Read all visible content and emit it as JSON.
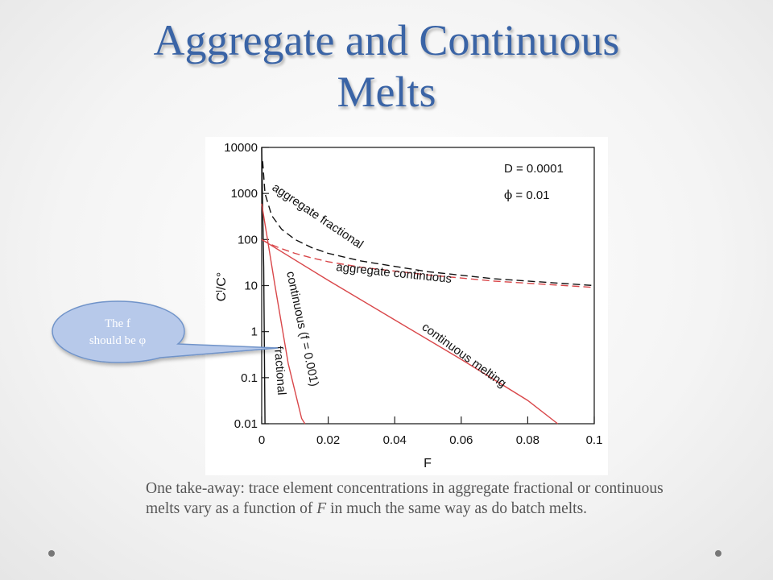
{
  "slide": {
    "title_line1": "Aggregate and Continuous",
    "title_line2": "Melts",
    "callout_line1": "The f",
    "callout_line2": "should be φ",
    "takeaway_part1": "One take-away: trace element concentrations in aggregate fractional or continuous melts vary as a function of ",
    "takeaway_italic": "F",
    "takeaway_part2": " in much the same way as do batch melts."
  },
  "colors": {
    "title": "#3a64a6",
    "callout_fill": "#b7c9ea",
    "callout_stroke": "#6f93c9",
    "callout_text": "#ffffff",
    "red_series": "#d9474a",
    "black_series": "#111111"
  },
  "chart_data": {
    "type": "line",
    "xlabel": "F",
    "ylabel": "Cˡ/C°",
    "x_scale": "linear",
    "y_scale": "log",
    "xlim": [
      0,
      0.1
    ],
    "ylim": [
      0.01,
      10000
    ],
    "x_ticks": [
      "0",
      "0.02",
      "0.04",
      "0.06",
      "0.08",
      "0.1"
    ],
    "y_ticks": [
      "0.01",
      "0.1",
      "1",
      "10",
      "100",
      "1000",
      "10000"
    ],
    "grid": false,
    "parameters": {
      "line1_label": "D = 0.0001",
      "line2_symbol": "ϕ",
      "line2_rest": " = 0.01"
    },
    "series": [
      {
        "name": "fractional",
        "color": "#111111",
        "dash": "solid",
        "x": [
          0,
          0.0001,
          0.0003,
          0.0006,
          0.001
        ],
        "y": [
          10000,
          3700,
          500,
          25,
          0.01
        ]
      },
      {
        "name": "aggregate fractional",
        "color": "#111111",
        "dash": "dashed",
        "x": [
          0.0003,
          0.001,
          0.003,
          0.006,
          0.01,
          0.015,
          0.02,
          0.03,
          0.05,
          0.07,
          0.1
        ],
        "y": [
          5000,
          1000,
          333,
          167,
          100,
          67,
          50,
          34,
          20,
          14,
          10
        ]
      },
      {
        "name": "aggregate continuous",
        "color": "#d9474a",
        "dash": "dashed",
        "x": [
          0,
          0.002,
          0.005,
          0.01,
          0.015,
          0.02,
          0.03,
          0.05,
          0.07,
          0.1
        ],
        "y": [
          100,
          83,
          67,
          50,
          40,
          33,
          25,
          17,
          12.5,
          9.1
        ]
      },
      {
        "name": "continuous (f = 0.001)",
        "color": "#d9474a",
        "dash": "solid",
        "x": [
          0,
          0.004,
          0.008,
          0.012,
          0.013
        ],
        "y": [
          600,
          10,
          0.2,
          0.013,
          0.01
        ]
      },
      {
        "name": "continuous melting",
        "color": "#d9474a",
        "dash": "solid",
        "x": [
          0,
          0.02,
          0.04,
          0.06,
          0.08,
          0.089
        ],
        "y": [
          100,
          13,
          1.8,
          0.25,
          0.032,
          0.01
        ]
      }
    ],
    "annotations": [
      {
        "text": "aggregate fractional",
        "series": "aggregate fractional"
      },
      {
        "text": "aggregate continuous",
        "series": "aggregate continuous"
      },
      {
        "text": "continuous (f = 0.001)",
        "series": "continuous (f = 0.001)"
      },
      {
        "text": "continuous melting",
        "series": "continuous melting"
      },
      {
        "text": "fractional",
        "series": "fractional"
      }
    ]
  }
}
